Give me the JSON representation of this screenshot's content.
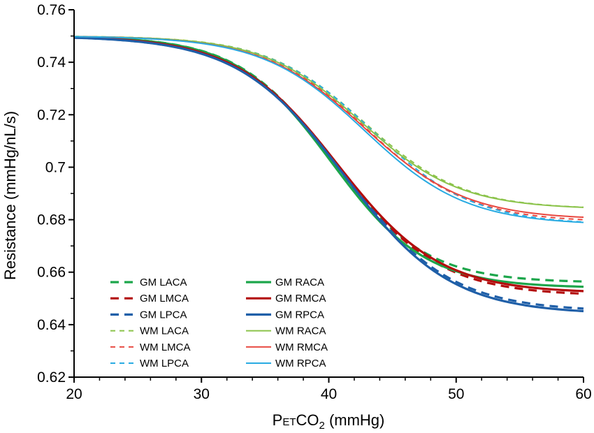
{
  "chart_data": {
    "type": "line",
    "title": "",
    "xlabel_parts": {
      "prefix": "P",
      "subscript_small": "ET",
      "main": "CO",
      "subscript": "2",
      "suffix": " (mmHg)"
    },
    "ylabel": "Resistance (mmHg/nL/s)",
    "xlim": [
      20,
      60
    ],
    "ylim": [
      0.62,
      0.76
    ],
    "x_ticks": [
      20,
      30,
      40,
      50,
      60
    ],
    "x_tick_labels": [
      "20",
      "30",
      "40",
      "50",
      "60"
    ],
    "y_ticks": [
      0.62,
      0.64,
      0.66,
      0.68,
      0.7,
      0.72,
      0.74,
      0.76
    ],
    "y_tick_labels": [
      "0.62",
      "0.64",
      "0.66",
      "0.68",
      "0.7",
      "0.72",
      "0.74",
      "0.76"
    ],
    "grid": false,
    "legend_position": "bottom-left",
    "series": [
      {
        "name": "GM LACA",
        "color": "#1ca64b",
        "dash": "long",
        "weight": "thick",
        "x0": 20,
        "y0": 0.75,
        "ymin": 0.656,
        "mid": 40.2,
        "k": 0.27
      },
      {
        "name": "GM LMCA",
        "color": "#b30d0d",
        "dash": "long",
        "weight": "thick",
        "x0": 20,
        "y0": 0.75,
        "ymin": 0.651,
        "mid": 40.7,
        "k": 0.25
      },
      {
        "name": "GM LPCA",
        "color": "#1f5fa8",
        "dash": "long",
        "weight": "thick",
        "x0": 20,
        "y0": 0.75,
        "ymin": 0.645,
        "mid": 41.2,
        "k": 0.24
      },
      {
        "name": "WM LACA",
        "color": "#8bc34a",
        "dash": "short",
        "weight": "thin",
        "x0": 20,
        "y0": 0.75,
        "ymin": 0.684,
        "mid": 42.8,
        "k": 0.26
      },
      {
        "name": "WM LMCA",
        "color": "#e8473f",
        "dash": "short",
        "weight": "thin",
        "x0": 20,
        "y0": 0.75,
        "ymin": 0.679,
        "mid": 43.0,
        "k": 0.25
      },
      {
        "name": "WM LPCA",
        "color": "#29abe2",
        "dash": "short",
        "weight": "thin",
        "x0": 20,
        "y0": 0.75,
        "ymin": 0.678,
        "mid": 43.4,
        "k": 0.25
      },
      {
        "name": "GM RACA",
        "color": "#1ca64b",
        "dash": "solid",
        "weight": "thick",
        "x0": 20,
        "y0": 0.75,
        "ymin": 0.654,
        "mid": 40.2,
        "k": 0.27
      },
      {
        "name": "GM RMCA",
        "color": "#b30d0d",
        "dash": "solid",
        "weight": "thick",
        "x0": 20,
        "y0": 0.75,
        "ymin": 0.652,
        "mid": 40.7,
        "k": 0.25
      },
      {
        "name": "GM RPCA",
        "color": "#1f5fa8",
        "dash": "solid",
        "weight": "thick",
        "x0": 20,
        "y0": 0.75,
        "ymin": 0.644,
        "mid": 41.2,
        "k": 0.24
      },
      {
        "name": "WM RACA",
        "color": "#8bc34a",
        "dash": "solid",
        "weight": "thin",
        "x0": 20,
        "y0": 0.75,
        "ymin": 0.684,
        "mid": 42.6,
        "k": 0.26
      },
      {
        "name": "WM RMCA",
        "color": "#e8473f",
        "dash": "solid",
        "weight": "thin",
        "x0": 20,
        "y0": 0.75,
        "ymin": 0.68,
        "mid": 42.8,
        "k": 0.25
      },
      {
        "name": "WM RPCA",
        "color": "#29abe2",
        "dash": "solid",
        "weight": "thin",
        "x0": 20,
        "y0": 0.75,
        "ymin": 0.678,
        "mid": 42.8,
        "k": 0.25
      }
    ]
  }
}
